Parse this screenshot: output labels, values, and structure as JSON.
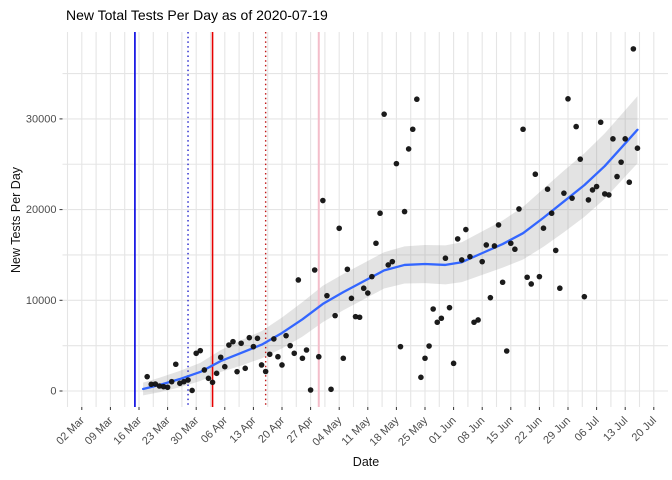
{
  "chart": {
    "title": "New Total Tests Per Day as of 2020-07-19",
    "xlabel": "Date",
    "ylabel": "New Tests Per Day"
  },
  "chart_data": {
    "type": "scatter",
    "title": "New Total Tests Per Day as of 2020-07-19",
    "xlabel": "Date",
    "ylabel": "New Tests Per Day",
    "grid": "on",
    "legend": "none",
    "ylim": [
      -1800,
      39600
    ],
    "xlim": [
      "2020-02-25",
      "2020-07-23"
    ],
    "y_ticks": [
      {
        "value": 0,
        "label": "0"
      },
      {
        "value": 10000,
        "label": "10000"
      },
      {
        "value": 20000,
        "label": "20000"
      },
      {
        "value": 30000,
        "label": "30000"
      }
    ],
    "x_ticks": [
      {
        "date": "2020-03-02",
        "label": "02 Mar"
      },
      {
        "date": "2020-03-09",
        "label": "09 Mar"
      },
      {
        "date": "2020-03-16",
        "label": "16 Mar"
      },
      {
        "date": "2020-03-23",
        "label": "23 Mar"
      },
      {
        "date": "2020-03-30",
        "label": "30 Mar"
      },
      {
        "date": "2020-04-06",
        "label": "06 Apr"
      },
      {
        "date": "2020-04-13",
        "label": "13 Apr"
      },
      {
        "date": "2020-04-20",
        "label": "20 Apr"
      },
      {
        "date": "2020-04-27",
        "label": "27 Apr"
      },
      {
        "date": "2020-05-04",
        "label": "04 May"
      },
      {
        "date": "2020-05-11",
        "label": "11 May"
      },
      {
        "date": "2020-05-18",
        "label": "18 May"
      },
      {
        "date": "2020-05-25",
        "label": "25 May"
      },
      {
        "date": "2020-06-01",
        "label": "01 Jun"
      },
      {
        "date": "2020-06-08",
        "label": "08 Jun"
      },
      {
        "date": "2020-06-15",
        "label": "15 Jun"
      },
      {
        "date": "2020-06-22",
        "label": "22 Jun"
      },
      {
        "date": "2020-06-29",
        "label": "29 Jun"
      },
      {
        "date": "2020-07-06",
        "label": "06 Jul"
      },
      {
        "date": "2020-07-13",
        "label": "13 Jul"
      },
      {
        "date": "2020-07-20",
        "label": "20 Jul"
      }
    ],
    "colors": {
      "point": "#121212",
      "smooth_line": "#3366ff",
      "smooth_band": "#999999",
      "grid": "#e5e5e5",
      "tick": "#333333",
      "axis_text": "#4d4d4d"
    },
    "vlines": [
      {
        "date": "2020-03-15",
        "color": "#0000e0",
        "style": "solid",
        "width": 1.6
      },
      {
        "date": "2020-03-28",
        "color": "#2222cc",
        "style": "dotted",
        "width": 1.4
      },
      {
        "date": "2020-04-03",
        "color": "#e60000",
        "style": "solid",
        "width": 1.6
      },
      {
        "date": "2020-04-16",
        "color": "#c01818",
        "style": "dotted",
        "width": 1.4
      },
      {
        "date": "2020-04-29",
        "color": "#f3bdca",
        "style": "solid",
        "width": 2.0
      }
    ],
    "points": [
      {
        "d": "2020-03-18",
        "v": 1580
      },
      {
        "d": "2020-03-19",
        "v": 740
      },
      {
        "d": "2020-03-20",
        "v": 770
      },
      {
        "d": "2020-03-21",
        "v": 550
      },
      {
        "d": "2020-03-22",
        "v": 480
      },
      {
        "d": "2020-03-23",
        "v": 410
      },
      {
        "d": "2020-03-24",
        "v": 1030
      },
      {
        "d": "2020-03-25",
        "v": 2950
      },
      {
        "d": "2020-03-26",
        "v": 850
      },
      {
        "d": "2020-03-27",
        "v": 1030
      },
      {
        "d": "2020-03-28",
        "v": 1210
      },
      {
        "d": "2020-03-29",
        "v": 60
      },
      {
        "d": "2020-03-30",
        "v": 4160
      },
      {
        "d": "2020-03-31",
        "v": 4450
      },
      {
        "d": "2020-04-01",
        "v": 2320
      },
      {
        "d": "2020-04-02",
        "v": 1400
      },
      {
        "d": "2020-04-03",
        "v": 960
      },
      {
        "d": "2020-04-04",
        "v": 1950
      },
      {
        "d": "2020-04-05",
        "v": 3720
      },
      {
        "d": "2020-04-06",
        "v": 2680
      },
      {
        "d": "2020-04-07",
        "v": 5070
      },
      {
        "d": "2020-04-08",
        "v": 5440
      },
      {
        "d": "2020-04-09",
        "v": 2130
      },
      {
        "d": "2020-04-10",
        "v": 5260
      },
      {
        "d": "2020-04-11",
        "v": 2500
      },
      {
        "d": "2020-04-12",
        "v": 5880
      },
      {
        "d": "2020-04-13",
        "v": 4890
      },
      {
        "d": "2020-04-14",
        "v": 5810
      },
      {
        "d": "2020-04-15",
        "v": 2870
      },
      {
        "d": "2020-04-16",
        "v": 2150
      },
      {
        "d": "2020-04-17",
        "v": 4050
      },
      {
        "d": "2020-04-18",
        "v": 5740
      },
      {
        "d": "2020-04-19",
        "v": 3780
      },
      {
        "d": "2020-04-20",
        "v": 2870
      },
      {
        "d": "2020-04-21",
        "v": 6100
      },
      {
        "d": "2020-04-22",
        "v": 5000
      },
      {
        "d": "2020-04-23",
        "v": 4160
      },
      {
        "d": "2020-04-24",
        "v": 12240
      },
      {
        "d": "2020-04-25",
        "v": 3610
      },
      {
        "d": "2020-04-26",
        "v": 4520
      },
      {
        "d": "2020-04-27",
        "v": 110
      },
      {
        "d": "2020-04-28",
        "v": 13340
      },
      {
        "d": "2020-04-29",
        "v": 3780
      },
      {
        "d": "2020-04-30",
        "v": 21000
      },
      {
        "d": "2020-05-01",
        "v": 10510
      },
      {
        "d": "2020-05-02",
        "v": 190
      },
      {
        "d": "2020-05-03",
        "v": 8310
      },
      {
        "d": "2020-05-04",
        "v": 17940
      },
      {
        "d": "2020-05-05",
        "v": 3610
      },
      {
        "d": "2020-05-06",
        "v": 13420
      },
      {
        "d": "2020-05-07",
        "v": 10220
      },
      {
        "d": "2020-05-08",
        "v": 8200
      },
      {
        "d": "2020-05-09",
        "v": 8130
      },
      {
        "d": "2020-05-10",
        "v": 11330
      },
      {
        "d": "2020-05-11",
        "v": 10800
      },
      {
        "d": "2020-05-12",
        "v": 12610
      },
      {
        "d": "2020-05-13",
        "v": 16290
      },
      {
        "d": "2020-05-14",
        "v": 19600
      },
      {
        "d": "2020-05-15",
        "v": 30520
      },
      {
        "d": "2020-05-16",
        "v": 13900
      },
      {
        "d": "2020-05-17",
        "v": 14260
      },
      {
        "d": "2020-05-18",
        "v": 25070
      },
      {
        "d": "2020-05-19",
        "v": 4890
      },
      {
        "d": "2020-05-20",
        "v": 19780
      },
      {
        "d": "2020-05-21",
        "v": 26690
      },
      {
        "d": "2020-05-22",
        "v": 28860
      },
      {
        "d": "2020-05-23",
        "v": 32170
      },
      {
        "d": "2020-05-24",
        "v": 1510
      },
      {
        "d": "2020-05-25",
        "v": 3610
      },
      {
        "d": "2020-05-26",
        "v": 4960
      },
      {
        "d": "2020-05-27",
        "v": 9040
      },
      {
        "d": "2020-05-28",
        "v": 7580
      },
      {
        "d": "2020-05-29",
        "v": 8020
      },
      {
        "d": "2020-05-30",
        "v": 14640
      },
      {
        "d": "2020-05-31",
        "v": 9190
      },
      {
        "d": "2020-06-01",
        "v": 3050
      },
      {
        "d": "2020-06-02",
        "v": 16770
      },
      {
        "d": "2020-06-03",
        "v": 14450
      },
      {
        "d": "2020-06-04",
        "v": 17800
      },
      {
        "d": "2020-06-05",
        "v": 14810
      },
      {
        "d": "2020-06-06",
        "v": 7580
      },
      {
        "d": "2020-06-07",
        "v": 7830
      },
      {
        "d": "2020-06-08",
        "v": 14260
      },
      {
        "d": "2020-06-09",
        "v": 16100
      },
      {
        "d": "2020-06-10",
        "v": 10290
      },
      {
        "d": "2020-06-11",
        "v": 15990
      },
      {
        "d": "2020-06-12",
        "v": 18310
      },
      {
        "d": "2020-06-13",
        "v": 11990
      },
      {
        "d": "2020-06-14",
        "v": 4410
      },
      {
        "d": "2020-06-15",
        "v": 16290
      },
      {
        "d": "2020-06-16",
        "v": 15630
      },
      {
        "d": "2020-06-17",
        "v": 20070
      },
      {
        "d": "2020-06-18",
        "v": 28860
      },
      {
        "d": "2020-06-19",
        "v": 12540
      },
      {
        "d": "2020-06-20",
        "v": 11800
      },
      {
        "d": "2020-06-21",
        "v": 23900
      },
      {
        "d": "2020-06-22",
        "v": 12610
      },
      {
        "d": "2020-06-23",
        "v": 17950
      },
      {
        "d": "2020-06-24",
        "v": 22250
      },
      {
        "d": "2020-06-25",
        "v": 19600
      },
      {
        "d": "2020-06-26",
        "v": 15500
      },
      {
        "d": "2020-06-27",
        "v": 11330
      },
      {
        "d": "2020-06-28",
        "v": 21810
      },
      {
        "d": "2020-06-29",
        "v": 32210
      },
      {
        "d": "2020-06-30",
        "v": 21260
      },
      {
        "d": "2020-07-01",
        "v": 29150
      },
      {
        "d": "2020-07-02",
        "v": 25560
      },
      {
        "d": "2020-07-03",
        "v": 10400
      },
      {
        "d": "2020-07-04",
        "v": 21070
      },
      {
        "d": "2020-07-05",
        "v": 22170
      },
      {
        "d": "2020-07-06",
        "v": 22540
      },
      {
        "d": "2020-07-07",
        "v": 29630
      },
      {
        "d": "2020-07-08",
        "v": 21730
      },
      {
        "d": "2020-07-09",
        "v": 21620
      },
      {
        "d": "2020-07-10",
        "v": 27800
      },
      {
        "d": "2020-07-11",
        "v": 23640
      },
      {
        "d": "2020-07-12",
        "v": 25230
      },
      {
        "d": "2020-07-13",
        "v": 27800
      },
      {
        "d": "2020-07-14",
        "v": 23020
      },
      {
        "d": "2020-07-15",
        "v": 37720
      },
      {
        "d": "2020-07-16",
        "v": 26770
      }
    ],
    "smooth": [
      {
        "d": "2020-03-17",
        "fit": 220,
        "lo": -480,
        "hi": 920
      },
      {
        "d": "2020-03-21",
        "fit": 660,
        "lo": -140,
        "hi": 1460
      },
      {
        "d": "2020-03-26",
        "fit": 1320,
        "lo": 420,
        "hi": 2220
      },
      {
        "d": "2020-03-31",
        "fit": 2100,
        "lo": 1100,
        "hi": 3100
      },
      {
        "d": "2020-04-05",
        "fit": 3300,
        "lo": 2100,
        "hi": 4500
      },
      {
        "d": "2020-04-10",
        "fit": 4200,
        "lo": 2800,
        "hi": 5600
      },
      {
        "d": "2020-04-15",
        "fit": 5100,
        "lo": 3600,
        "hi": 6600
      },
      {
        "d": "2020-04-20",
        "fit": 6400,
        "lo": 4700,
        "hi": 8100
      },
      {
        "d": "2020-04-25",
        "fit": 7900,
        "lo": 6000,
        "hi": 9800
      },
      {
        "d": "2020-04-30",
        "fit": 9600,
        "lo": 7600,
        "hi": 11600
      },
      {
        "d": "2020-05-05",
        "fit": 10900,
        "lo": 8900,
        "hi": 12900
      },
      {
        "d": "2020-05-10",
        "fit": 12100,
        "lo": 10100,
        "hi": 14100
      },
      {
        "d": "2020-05-15",
        "fit": 13300,
        "lo": 11300,
        "hi": 15300
      },
      {
        "d": "2020-05-20",
        "fit": 13900,
        "lo": 11850,
        "hi": 15950
      },
      {
        "d": "2020-05-25",
        "fit": 14000,
        "lo": 11900,
        "hi": 16100
      },
      {
        "d": "2020-05-30",
        "fit": 13900,
        "lo": 11750,
        "hi": 16050
      },
      {
        "d": "2020-06-03",
        "fit": 14200,
        "lo": 12000,
        "hi": 16400
      },
      {
        "d": "2020-06-08",
        "fit": 15200,
        "lo": 12800,
        "hi": 17600
      },
      {
        "d": "2020-06-13",
        "fit": 16200,
        "lo": 13600,
        "hi": 18800
      },
      {
        "d": "2020-06-18",
        "fit": 17400,
        "lo": 14500,
        "hi": 20300
      },
      {
        "d": "2020-06-23",
        "fit": 19100,
        "lo": 15900,
        "hi": 22300
      },
      {
        "d": "2020-06-28",
        "fit": 20900,
        "lo": 17500,
        "hi": 24300
      },
      {
        "d": "2020-07-03",
        "fit": 22700,
        "lo": 19200,
        "hi": 26200
      },
      {
        "d": "2020-07-08",
        "fit": 24800,
        "lo": 21200,
        "hi": 28400
      },
      {
        "d": "2020-07-12",
        "fit": 26800,
        "lo": 23150,
        "hi": 30450
      },
      {
        "d": "2020-07-16",
        "fit": 28800,
        "lo": 25100,
        "hi": 32500
      }
    ]
  }
}
